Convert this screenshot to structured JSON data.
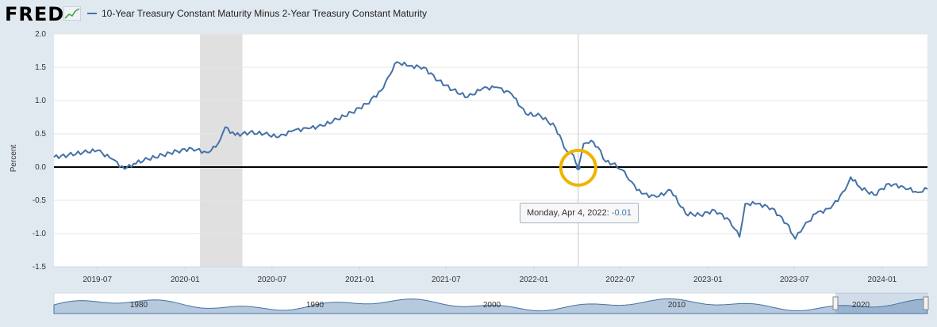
{
  "logo": {
    "text": "FRED"
  },
  "legend": {
    "series_name": "10-Year Treasury Constant Maturity Minus 2-Year Treasury Constant Maturity"
  },
  "tooltip": {
    "label": "Monday, Apr 4, 2022:",
    "value": "-0.01"
  },
  "colors": {
    "series": "#4572a7",
    "recession": "#e0e0e0",
    "highlight": "#f0b400",
    "zero_line": "#000000"
  },
  "chart_data": {
    "type": "line",
    "ylabel": "Percent",
    "ylim": [
      -1.5,
      2.0
    ],
    "yticks": [
      2.0,
      1.5,
      1.0,
      0.5,
      0.0,
      -0.5,
      -1.0,
      -1.5
    ],
    "ytick_labels": [
      "2.0",
      "1.5",
      "1.0",
      "0.5",
      "0.0",
      "-0.5",
      "-1.0",
      "-1.5"
    ],
    "xlim": [
      "2019-04-01",
      "2024-04-05"
    ],
    "xticks": [
      "2019-07",
      "2020-01",
      "2020-07",
      "2021-01",
      "2021-07",
      "2022-01",
      "2022-07",
      "2023-01",
      "2023-07",
      "2024-01"
    ],
    "navigator_labels": [
      "1980",
      "1990",
      "2000",
      "2010",
      "2020"
    ],
    "recession": {
      "start": "2020-02-01",
      "end": "2020-04-30"
    },
    "highlight_point": {
      "date": "2022-04-04",
      "value": -0.01
    },
    "series": [
      {
        "name": "10-Year Treasury Constant Maturity Minus 2-Year Treasury Constant Maturity",
        "x": [
          "2019-04-01",
          "2019-05-01",
          "2019-06-01",
          "2019-07-01",
          "2019-08-01",
          "2019-08-27",
          "2019-09-15",
          "2019-10-15",
          "2019-11-15",
          "2019-12-15",
          "2020-01-15",
          "2020-02-15",
          "2020-03-05",
          "2020-03-15",
          "2020-03-25",
          "2020-04-15",
          "2020-05-15",
          "2020-06-15",
          "2020-07-15",
          "2020-08-15",
          "2020-09-15",
          "2020-10-15",
          "2020-11-15",
          "2020-12-15",
          "2021-01-15",
          "2021-02-15",
          "2021-03-01",
          "2021-03-20",
          "2021-04-15",
          "2021-05-15",
          "2021-06-15",
          "2021-07-15",
          "2021-08-15",
          "2021-09-15",
          "2021-10-15",
          "2021-11-15",
          "2021-12-15",
          "2022-01-15",
          "2022-02-15",
          "2022-03-10",
          "2022-03-25",
          "2022-04-04",
          "2022-04-15",
          "2022-05-01",
          "2022-05-15",
          "2022-06-01",
          "2022-06-15",
          "2022-07-05",
          "2022-07-20",
          "2022-08-15",
          "2022-09-15",
          "2022-10-15",
          "2022-11-15",
          "2022-12-15",
          "2023-01-15",
          "2023-02-15",
          "2023-03-08",
          "2023-03-20",
          "2023-04-15",
          "2023-05-15",
          "2023-06-15",
          "2023-07-03",
          "2023-07-20",
          "2023-08-15",
          "2023-09-15",
          "2023-10-15",
          "2023-10-27",
          "2023-11-15",
          "2023-12-15",
          "2024-01-15",
          "2024-02-15",
          "2024-03-15",
          "2024-04-05"
        ],
        "values": [
          0.15,
          0.18,
          0.22,
          0.25,
          0.12,
          -0.03,
          0.05,
          0.12,
          0.18,
          0.24,
          0.28,
          0.22,
          0.3,
          0.42,
          0.6,
          0.48,
          0.52,
          0.5,
          0.45,
          0.55,
          0.58,
          0.62,
          0.72,
          0.82,
          0.95,
          1.15,
          1.35,
          1.58,
          1.52,
          1.5,
          1.3,
          1.16,
          1.05,
          1.18,
          1.2,
          1.1,
          0.8,
          0.77,
          0.6,
          0.25,
          0.18,
          -0.01,
          0.35,
          0.4,
          0.3,
          0.08,
          0.05,
          -0.04,
          -0.2,
          -0.4,
          -0.45,
          -0.35,
          -0.7,
          -0.72,
          -0.65,
          -0.8,
          -1.05,
          -0.55,
          -0.55,
          -0.62,
          -0.85,
          -1.08,
          -0.9,
          -0.7,
          -0.62,
          -0.35,
          -0.15,
          -0.3,
          -0.42,
          -0.25,
          -0.3,
          -0.38,
          -0.33
        ]
      }
    ]
  }
}
